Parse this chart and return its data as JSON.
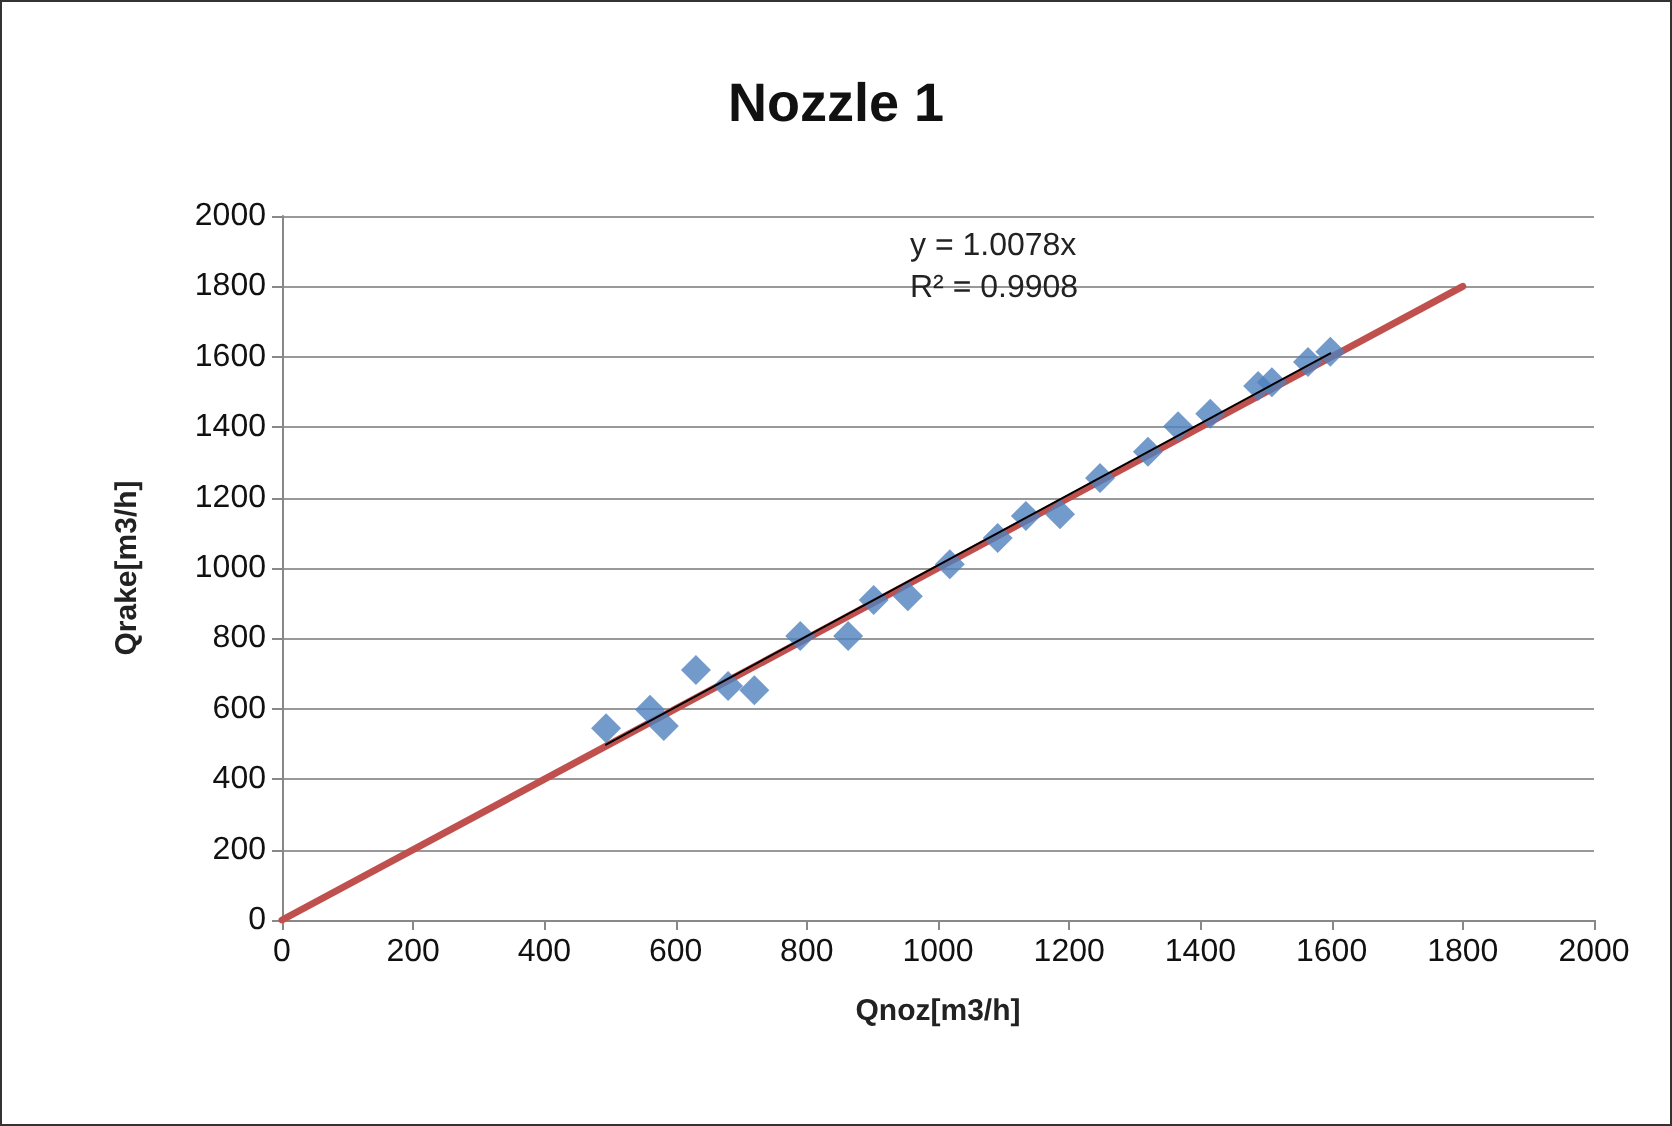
{
  "chart_data": {
    "type": "scatter",
    "title": "Nozzle 1",
    "xlabel": "Qnoz[m3/h]",
    "ylabel": "Qrake[m3/h]",
    "xlim": [
      0,
      2000
    ],
    "xticks": [
      0,
      200,
      400,
      600,
      800,
      1000,
      1200,
      1400,
      1600,
      1800,
      2000
    ],
    "ylim": [
      0,
      2000
    ],
    "yticks": [
      0,
      200,
      400,
      600,
      800,
      1000,
      1200,
      1400,
      1600,
      1800,
      2000
    ],
    "grid": "y",
    "annotations": [
      "y = 1.0078x",
      "R² = 0.9908"
    ],
    "series": [
      {
        "type": "line",
        "color": "#c0504d",
        "marker": "none",
        "line_style": "solid",
        "x": [
          0,
          1800
        ],
        "values": [
          0,
          1800
        ]
      },
      {
        "color": "#4f81bd",
        "marker": "diamond",
        "x": [
          494,
          561,
          582,
          631,
          680,
          720,
          790,
          863,
          902,
          954,
          1018,
          1091,
          1134,
          1186,
          1247,
          1320,
          1366,
          1415,
          1488,
          1509,
          1564,
          1598
        ],
        "values": [
          545,
          597,
          551,
          710,
          665,
          653,
          807,
          807,
          909,
          920,
          1011,
          1085,
          1148,
          1153,
          1256,
          1330,
          1403,
          1438,
          1517,
          1528,
          1585,
          1614
        ]
      },
      {
        "type": "line",
        "color": "#000000",
        "marker": "none",
        "line_style": "solid",
        "x": [
          494,
          1598
        ],
        "values": [
          498,
          1610
        ]
      }
    ]
  }
}
